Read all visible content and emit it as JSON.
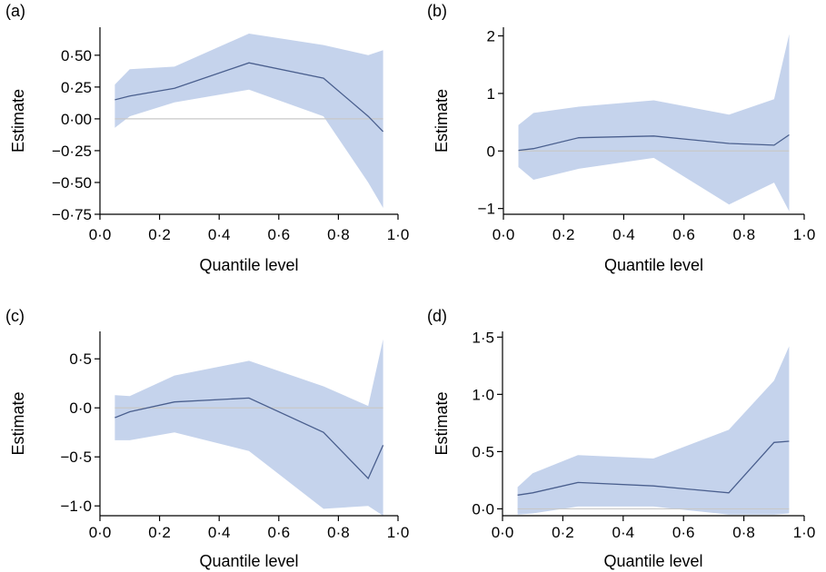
{
  "chart_data": [
    {
      "type": "area",
      "panel_label": "(a)",
      "xlabel": "Quantile level",
      "ylabel": "Estimate",
      "xlim": [
        0,
        1
      ],
      "ylim": [
        -0.75,
        0.72
      ],
      "xticks": [
        0,
        0.2,
        0.4,
        0.6,
        0.8,
        1.0
      ],
      "xtick_labels": [
        "0·0",
        "0·2",
        "0·4",
        "0·6",
        "0·8",
        "1·0"
      ],
      "yticks": [
        -0.75,
        -0.5,
        -0.25,
        0,
        0.25,
        0.5
      ],
      "ytick_labels": [
        "−0·75",
        "−0·50",
        "−0·25",
        "0·00",
        "0·25",
        "0·50"
      ],
      "series": [
        {
          "name": "Estimate",
          "x": [
            0.05,
            0.1,
            0.25,
            0.5,
            0.75,
            0.9,
            0.95
          ],
          "values": [
            0.15,
            0.18,
            0.24,
            0.44,
            0.32,
            0.02,
            -0.1
          ],
          "lower": [
            -0.07,
            0.02,
            0.13,
            0.23,
            0.02,
            -0.5,
            -0.7
          ],
          "upper": [
            0.27,
            0.39,
            0.41,
            0.67,
            0.58,
            0.5,
            0.54
          ]
        }
      ],
      "colors": {
        "band": "#c5d3ec",
        "line": "#4a5f8e",
        "zero": "#c8c8c8"
      }
    },
    {
      "type": "area",
      "panel_label": "(b)",
      "xlabel": "Quantile level",
      "ylabel": "Estimate",
      "xlim": [
        0,
        1
      ],
      "ylim": [
        -1.1,
        2.15
      ],
      "xticks": [
        0,
        0.2,
        0.4,
        0.6,
        0.8,
        1.0
      ],
      "xtick_labels": [
        "0·0",
        "0·2",
        "0·4",
        "0·6",
        "0·8",
        "1·0"
      ],
      "yticks": [
        -1,
        0,
        1,
        2
      ],
      "ytick_labels": [
        "−1",
        "0",
        "1",
        "2"
      ],
      "series": [
        {
          "name": "Estimate",
          "x": [
            0.05,
            0.1,
            0.25,
            0.5,
            0.75,
            0.9,
            0.95
          ],
          "values": [
            0.01,
            0.04,
            0.23,
            0.26,
            0.13,
            0.1,
            0.28
          ],
          "lower": [
            -0.28,
            -0.5,
            -0.31,
            -0.12,
            -0.93,
            -0.55,
            -1.05
          ],
          "upper": [
            0.45,
            0.66,
            0.77,
            0.88,
            0.63,
            0.9,
            2.03
          ]
        }
      ],
      "colors": {
        "band": "#c5d3ec",
        "line": "#4a5f8e",
        "zero": "#c8c8c8"
      }
    },
    {
      "type": "area",
      "panel_label": "(c)",
      "xlabel": "Quantile level",
      "ylabel": "Estimate",
      "xlim": [
        0,
        1
      ],
      "ylim": [
        -1.1,
        0.78
      ],
      "xticks": [
        0,
        0.2,
        0.4,
        0.6,
        0.8,
        1.0
      ],
      "xtick_labels": [
        "0·0",
        "0·2",
        "0·4",
        "0·6",
        "0·8",
        "1·0"
      ],
      "yticks": [
        -1.0,
        -0.5,
        0,
        0.5
      ],
      "ytick_labels": [
        "−1·0",
        "−0·5",
        "0·0",
        "0·5"
      ],
      "series": [
        {
          "name": "Estimate",
          "x": [
            0.05,
            0.1,
            0.25,
            0.5,
            0.75,
            0.9,
            0.95
          ],
          "values": [
            -0.1,
            -0.04,
            0.06,
            0.1,
            -0.25,
            -0.72,
            -0.38
          ],
          "lower": [
            -0.33,
            -0.33,
            -0.25,
            -0.44,
            -1.03,
            -1.0,
            -1.1
          ],
          "upper": [
            0.13,
            0.12,
            0.33,
            0.48,
            0.22,
            0.02,
            0.7
          ]
        }
      ],
      "colors": {
        "band": "#c5d3ec",
        "line": "#4a5f8e",
        "zero": "#c8c8c8"
      }
    },
    {
      "type": "area",
      "panel_label": "(d)",
      "xlabel": "Quantile level",
      "ylabel": "Estimate",
      "xlim": [
        0,
        1
      ],
      "ylim": [
        -0.06,
        1.55
      ],
      "xticks": [
        0,
        0.2,
        0.4,
        0.6,
        0.8,
        1.0
      ],
      "xtick_labels": [
        "0·0",
        "0·2",
        "0·4",
        "0·6",
        "0·8",
        "1·0"
      ],
      "yticks": [
        0,
        0.5,
        1.0,
        1.5
      ],
      "ytick_labels": [
        "0·0",
        "0·5",
        "1·0",
        "1·5"
      ],
      "series": [
        {
          "name": "Estimate",
          "x": [
            0.05,
            0.1,
            0.25,
            0.5,
            0.75,
            0.9,
            0.95
          ],
          "values": [
            0.12,
            0.14,
            0.23,
            0.2,
            0.14,
            0.58,
            0.59
          ],
          "lower": [
            -0.05,
            -0.04,
            0.02,
            0.02,
            -0.05,
            -0.05,
            -0.04
          ],
          "upper": [
            0.19,
            0.31,
            0.47,
            0.44,
            0.69,
            1.12,
            1.42
          ]
        }
      ],
      "colors": {
        "band": "#c5d3ec",
        "line": "#4a5f8e",
        "zero": "#c8c8c8"
      }
    }
  ]
}
